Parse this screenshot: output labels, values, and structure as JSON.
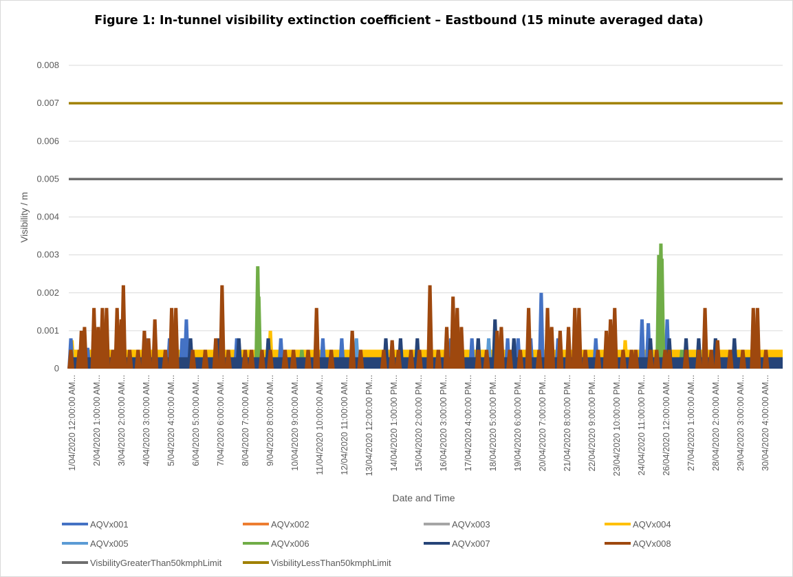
{
  "chart_data": {
    "type": "area",
    "title": "Figure 1: In-tunnel visibility extinction coefficient – Eastbound (15 minute averaged data)",
    "xlabel": "Date and Time",
    "ylabel": "Visibility / m",
    "ylim": [
      0,
      0.008
    ],
    "yticks": [
      "0",
      "0.001",
      "0.002",
      "0.003",
      "0.004",
      "0.005",
      "0.006",
      "0.007",
      "0.008"
    ],
    "grid": "horizontal",
    "legend_position": "bottom",
    "x_categories": [
      "1/04/2020 12:00:00 AM...",
      "2/04/2020 1:00:00 AM...",
      "3/04/2020 2:00:00 AM...",
      "4/04/2020 3:00:00 AM...",
      "5/04/2020 4:00:00 AM...",
      "6/04/2020 5:00:00 AM...",
      "7/04/2020 6:00:00 AM...",
      "8/04/2020 7:00:00 AM...",
      "9/04/2020 8:00:00 AM...",
      "10/04/2020 9:00:00 AM...",
      "11/04/2020 10:00:00 AM...",
      "12/04/2020 11:00:00 AM...",
      "13/04/2020 12:00:00 PM...",
      "14/04/2020 1:00:00 PM...",
      "15/04/2020 2:00:00 PM...",
      "16/04/2020 3:00:00 PM...",
      "17/04/2020 4:00:00 PM...",
      "18/04/2020 5:00:00 PM...",
      "19/04/2020 6:00:00 PM...",
      "20/04/2020 7:00:00 PM...",
      "21/04/2020 8:00:00 PM...",
      "22/04/2020 9:00:00 PM...",
      "23/04/2020 10:00:00 PM...",
      "24/04/2020 11:00:00 PM...",
      "26/04/2020 12:00:00 AM...",
      "27/04/2020 1:00:00 AM...",
      "28/04/2020 2:00:00 AM...",
      "29/04/2020 3:00:00 AM...",
      "30/04/2020 4:00:00 AM..."
    ],
    "series": [
      {
        "name": "AQVx001",
        "color": "#4472c4",
        "kind": "spikes",
        "baseline": 0.0003,
        "peaks": [
          [
            0.1,
            0.0008
          ],
          [
            0.9,
            0.00055
          ],
          [
            3.7,
            0.0008
          ],
          [
            4.8,
            0.0008
          ],
          [
            5.4,
            0.0008
          ],
          [
            5.6,
            0.0013
          ],
          [
            8.0,
            0.0008
          ],
          [
            10.1,
            0.0008
          ],
          [
            12.1,
            0.0008
          ],
          [
            13.0,
            0.0008
          ],
          [
            18.2,
            0.0008
          ],
          [
            18.6,
            0.0008
          ],
          [
            19.2,
            0.0008
          ],
          [
            20.9,
            0.0008
          ],
          [
            21.4,
            0.0008
          ],
          [
            22.0,
            0.0008
          ],
          [
            22.5,
            0.002
          ],
          [
            23.3,
            0.0008
          ],
          [
            25.1,
            0.0008
          ],
          [
            27.3,
            0.0013
          ],
          [
            27.6,
            0.0012
          ],
          [
            28.5,
            0.0013
          ]
        ]
      },
      {
        "name": "AQVx002",
        "color": "#ed7d31",
        "kind": "spikes",
        "baseline": 0,
        "peaks": []
      },
      {
        "name": "AQVx003",
        "color": "#a5a5a5",
        "kind": "spikes",
        "baseline": 0,
        "peaks": []
      },
      {
        "name": "AQVx004",
        "color": "#ffc000",
        "kind": "spikes",
        "baseline": 0.0005,
        "peaks": [
          [
            0.15,
            0.00075
          ],
          [
            3.1,
            0.0005
          ],
          [
            9.6,
            0.001
          ],
          [
            11.0,
            0.0005
          ],
          [
            14.1,
            0.0005
          ],
          [
            26.5,
            0.00075
          ],
          [
            32.0,
            0.0005
          ]
        ]
      },
      {
        "name": "AQVx005",
        "color": "#5b9bd5",
        "kind": "spikes",
        "baseline": 0,
        "peaks": [
          [
            5.5,
            0.0008
          ],
          [
            13.7,
            0.0008
          ],
          [
            20.0,
            0.0008
          ]
        ]
      },
      {
        "name": "AQVx006",
        "color": "#70ad47",
        "kind": "spikes",
        "baseline": 0,
        "peaks": [
          [
            9.0,
            0.0027
          ],
          [
            9.05,
            0.0019
          ],
          [
            11.1,
            0.0005
          ],
          [
            28.1,
            0.003
          ],
          [
            28.2,
            0.0033
          ],
          [
            28.25,
            0.0029
          ],
          [
            28.5,
            0.0005
          ],
          [
            29.2,
            0.0005
          ],
          [
            31.5,
            0.0005
          ]
        ]
      },
      {
        "name": "AQVx007",
        "color": "#264478",
        "kind": "spikes",
        "baseline": 0.0003,
        "peaks": [
          [
            5.8,
            0.0008
          ],
          [
            7.1,
            0.0008
          ],
          [
            8.1,
            0.0008
          ],
          [
            9.5,
            0.0008
          ],
          [
            15.1,
            0.0008
          ],
          [
            15.8,
            0.0008
          ],
          [
            16.6,
            0.0008
          ],
          [
            19.5,
            0.0008
          ],
          [
            20.3,
            0.0013
          ],
          [
            21.2,
            0.0008
          ],
          [
            22.8,
            0.0008
          ],
          [
            23.4,
            0.0008
          ],
          [
            27.7,
            0.0008
          ],
          [
            28.6,
            0.0008
          ],
          [
            29.4,
            0.0008
          ],
          [
            30.0,
            0.0008
          ],
          [
            30.8,
            0.0008
          ],
          [
            31.7,
            0.0008
          ]
        ]
      },
      {
        "name": "AQVx008",
        "color": "#9e480e",
        "kind": "spikes",
        "baseline": 0,
        "peaks": [
          [
            0.1,
            0.0005
          ],
          [
            0.5,
            0.0005
          ],
          [
            0.6,
            0.001
          ],
          [
            0.75,
            0.0011
          ],
          [
            1.2,
            0.0016
          ],
          [
            1.4,
            0.0011
          ],
          [
            1.6,
            0.0016
          ],
          [
            1.8,
            0.0016
          ],
          [
            2.1,
            0.0005
          ],
          [
            2.3,
            0.0016
          ],
          [
            2.5,
            0.0013
          ],
          [
            2.6,
            0.0022
          ],
          [
            2.9,
            0.0005
          ],
          [
            3.3,
            0.0005
          ],
          [
            3.6,
            0.001
          ],
          [
            3.8,
            0.0008
          ],
          [
            4.1,
            0.0013
          ],
          [
            4.6,
            0.0005
          ],
          [
            4.9,
            0.0016
          ],
          [
            5.1,
            0.0016
          ],
          [
            5.9,
            0.0005
          ],
          [
            6.5,
            0.0005
          ],
          [
            7.0,
            0.0008
          ],
          [
            7.3,
            0.0022
          ],
          [
            7.6,
            0.0005
          ],
          [
            8.4,
            0.0005
          ],
          [
            8.7,
            0.0005
          ],
          [
            9.2,
            0.0005
          ],
          [
            9.6,
            0.0005
          ],
          [
            10.3,
            0.0005
          ],
          [
            10.7,
            0.0005
          ],
          [
            11.4,
            0.0005
          ],
          [
            11.8,
            0.0016
          ],
          [
            12.5,
            0.0005
          ],
          [
            13.5,
            0.001
          ],
          [
            13.9,
            0.0005
          ],
          [
            15.0,
            0.0005
          ],
          [
            15.4,
            0.00075
          ],
          [
            15.7,
            0.0005
          ],
          [
            16.3,
            0.0005
          ],
          [
            16.7,
            0.0005
          ],
          [
            17.2,
            0.0022
          ],
          [
            17.6,
            0.0005
          ],
          [
            18.0,
            0.0011
          ],
          [
            18.3,
            0.0019
          ],
          [
            18.5,
            0.0016
          ],
          [
            18.7,
            0.0011
          ],
          [
            19.5,
            0.0005
          ],
          [
            19.9,
            0.0005
          ],
          [
            20.4,
            0.001
          ],
          [
            20.6,
            0.0011
          ],
          [
            21.0,
            0.0005
          ],
          [
            21.5,
            0.0005
          ],
          [
            21.9,
            0.0016
          ],
          [
            22.4,
            0.0005
          ],
          [
            22.8,
            0.0016
          ],
          [
            23.0,
            0.0011
          ],
          [
            23.4,
            0.001
          ],
          [
            23.8,
            0.0011
          ],
          [
            24.1,
            0.0016
          ],
          [
            24.3,
            0.0016
          ],
          [
            24.6,
            0.0005
          ],
          [
            25.2,
            0.0005
          ],
          [
            25.6,
            0.001
          ],
          [
            25.8,
            0.0013
          ],
          [
            26.0,
            0.0016
          ],
          [
            26.4,
            0.0005
          ],
          [
            26.8,
            0.0005
          ],
          [
            27.0,
            0.0005
          ],
          [
            27.7,
            0.0005
          ],
          [
            28.0,
            0.0005
          ],
          [
            28.4,
            0.0005
          ],
          [
            28.6,
            0.0005
          ],
          [
            29.4,
            0.0005
          ],
          [
            30.0,
            0.0005
          ],
          [
            30.3,
            0.0016
          ],
          [
            30.6,
            0.0005
          ],
          [
            30.9,
            0.00075
          ],
          [
            31.5,
            0.0005
          ],
          [
            32.1,
            0.0005
          ],
          [
            32.6,
            0.0016
          ],
          [
            32.8,
            0.0016
          ],
          [
            33.2,
            0.0005
          ]
        ]
      },
      {
        "name": "VisbilityGreaterThan50kmphLimit",
        "color": "#6e6e6e",
        "kind": "line",
        "value": 0.005
      },
      {
        "name": "VisbilityLessThan50kmphLimit",
        "color": "#a08000",
        "kind": "line",
        "value": 0.007
      }
    ]
  }
}
